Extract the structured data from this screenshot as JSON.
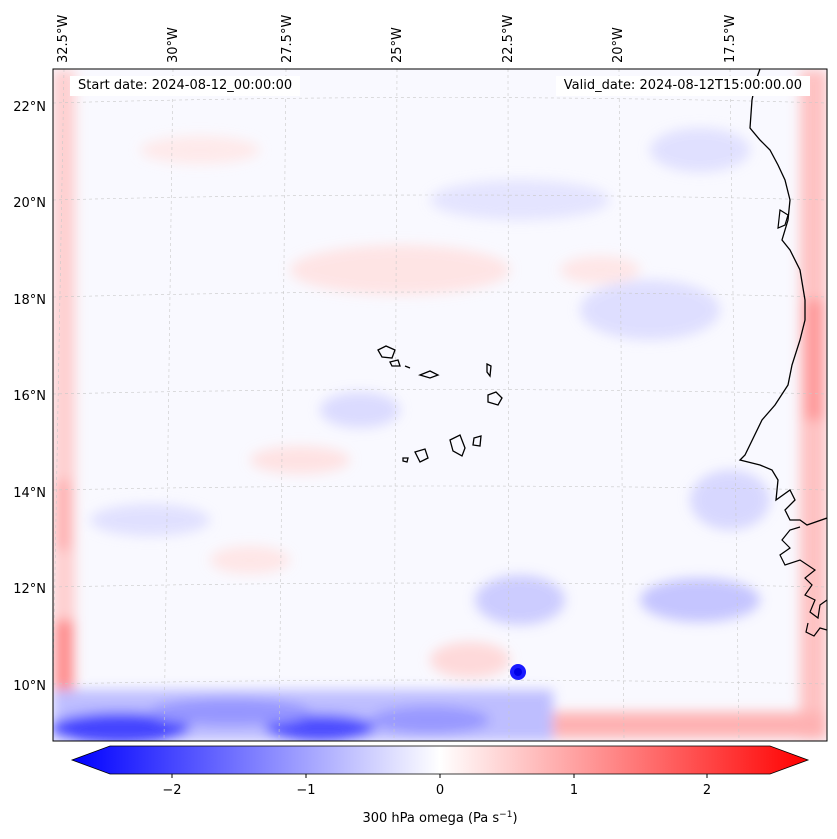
{
  "header": {
    "start_label": "Start date: 2024-08-12_00:00:00",
    "valid_label": "Valid_date: 2024-08-12T15:00:00.00"
  },
  "map": {
    "variable": "300 hPa omega",
    "lon_labels": [
      "32.5°W",
      "30°W",
      "27.5°W",
      "25°W",
      "22.5°W",
      "20°W",
      "17.5°W"
    ],
    "lat_labels": [
      "22°N",
      "20°N",
      "18°N",
      "16°N",
      "14°N",
      "12°N",
      "10°N"
    ]
  },
  "colorbar": {
    "label_main": "300 hPa omega (Pa s",
    "label_sup": "−1",
    "label_end": ")",
    "ticks": [
      "−2",
      "−1",
      "0",
      "1",
      "2"
    ],
    "min": -2.7,
    "max": 2.7,
    "low_color": "#0000ff",
    "mid_color": "#ffffff",
    "high_color": "#ff0000"
  },
  "colors": {
    "background": "#f8f8ff",
    "coastline": "#000000",
    "gridline": "#c8c8c8"
  }
}
